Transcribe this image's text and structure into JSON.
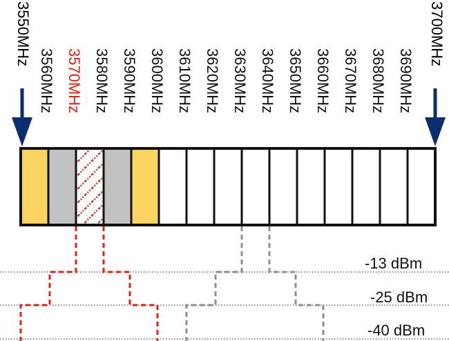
{
  "colors": {
    "yellow": "#FBD560",
    "gray": "#C2C2C2",
    "white": "#FFFFFF",
    "hatch": "#C0392B",
    "red_label": "#E0201B",
    "black": "#111111",
    "arrow": "#0B2F6E",
    "red_mask": "#E0201B",
    "gray_mask": "#8E8E8E"
  },
  "edges": {
    "left": "3550MHz",
    "right": "3700MHz"
  },
  "channel_labels": [
    {
      "text": "3560MHz",
      "highlight": false
    },
    {
      "text": "3570MHz",
      "highlight": true
    },
    {
      "text": "3580MHz",
      "highlight": false
    },
    {
      "text": "3590MHz",
      "highlight": false
    },
    {
      "text": "3600MHz",
      "highlight": false
    },
    {
      "text": "3610MHz",
      "highlight": false
    },
    {
      "text": "3620MHz",
      "highlight": false
    },
    {
      "text": "3630MHz",
      "highlight": false
    },
    {
      "text": "3640MHz",
      "highlight": false
    },
    {
      "text": "3650MHz",
      "highlight": false
    },
    {
      "text": "3660MHz",
      "highlight": false
    },
    {
      "text": "3670MHz",
      "highlight": false
    },
    {
      "text": "3680MHz",
      "highlight": false
    },
    {
      "text": "3690MHz",
      "highlight": false
    }
  ],
  "cells": [
    "yellow",
    "gray",
    "hatch",
    "gray",
    "yellow",
    "white",
    "white",
    "white",
    "white",
    "white",
    "white",
    "white",
    "white",
    "white",
    "white"
  ],
  "levels": [
    "-13 dBm",
    "-25 dBm",
    "-40 dBm"
  ]
}
